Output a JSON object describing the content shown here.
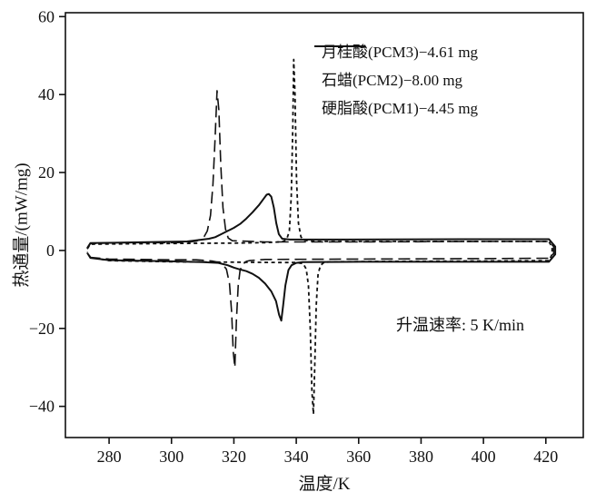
{
  "chart_data": {
    "type": "line",
    "title": "",
    "xlabel": "温度/K",
    "ylabel": "热通量/(mW/mg)",
    "xlim": [
      266,
      432
    ],
    "ylim": [
      -48,
      61
    ],
    "x_ticks": [
      280,
      300,
      320,
      340,
      360,
      380,
      400,
      420
    ],
    "y_ticks": [
      -40,
      -20,
      0,
      20,
      40,
      60
    ],
    "grid": false,
    "legend_position": "upper right",
    "line_color": "#111111",
    "annotation": {
      "text": "升温速率:  5 K/min",
      "x": 372,
      "y": -19
    },
    "series": [
      {
        "name": "月桂酸(PCM3)−4.61 mg",
        "style": "long-dash",
        "dash": "13 6",
        "width": 1.6,
        "melt_peak_K": 314.6,
        "melt_peak_mW_mg": 41,
        "cryst_peak_K": 320.3,
        "cryst_peak_mW_mg": -30,
        "points": [
          [
            273,
            0.5
          ],
          [
            274,
            1.8
          ],
          [
            285,
            2.0
          ],
          [
            300,
            2.0
          ],
          [
            305,
            2.1
          ],
          [
            308,
            2.4
          ],
          [
            309,
            2.8
          ],
          [
            310.5,
            3.6
          ],
          [
            311.5,
            5
          ],
          [
            312.5,
            9
          ],
          [
            313.3,
            17
          ],
          [
            314,
            29
          ],
          [
            314.6,
            41
          ],
          [
            315.2,
            36
          ],
          [
            315.8,
            22
          ],
          [
            316.5,
            11
          ],
          [
            317.3,
            5.5
          ],
          [
            318.2,
            3.2
          ],
          [
            319.5,
            2.5
          ],
          [
            330,
            2.2
          ],
          [
            360,
            2.2
          ],
          [
            400,
            2.3
          ],
          [
            421,
            2.3
          ],
          [
            422.5,
            1
          ],
          [
            422.5,
            -0.8
          ],
          [
            421,
            -2.0
          ],
          [
            400,
            -2.1
          ],
          [
            360,
            -2.2
          ],
          [
            330,
            -2.3
          ],
          [
            325,
            -2.6
          ],
          [
            324,
            -2.8
          ],
          [
            322.8,
            -3.6
          ],
          [
            322,
            -5
          ],
          [
            321.4,
            -9
          ],
          [
            320.8,
            -18
          ],
          [
            320.3,
            -30
          ],
          [
            319.8,
            -26
          ],
          [
            319.3,
            -16
          ],
          [
            318.6,
            -8.5
          ],
          [
            317.6,
            -4.8
          ],
          [
            316,
            -3.2
          ],
          [
            313,
            -2.7
          ],
          [
            308,
            -2.4
          ],
          [
            300,
            -2.4
          ],
          [
            280,
            -2.2
          ],
          [
            274,
            -1.8
          ],
          [
            273,
            -0.5
          ]
        ]
      },
      {
        "name": "石蜡(PCM2)−8.00 mg",
        "style": "solid",
        "dash": "",
        "width": 2,
        "melt_peak_K": 331,
        "melt_peak_mW_mg": 14.5,
        "cryst_peak_K": 335.2,
        "cryst_peak_mW_mg": -18,
        "points": [
          [
            273,
            0.6
          ],
          [
            274,
            1.9
          ],
          [
            290,
            2.1
          ],
          [
            305,
            2.3
          ],
          [
            310,
            2.8
          ],
          [
            312,
            3.0
          ],
          [
            314,
            3.4
          ],
          [
            316,
            4.2
          ],
          [
            318,
            5.0
          ],
          [
            320,
            5.8
          ],
          [
            322,
            6.8
          ],
          [
            324,
            8.2
          ],
          [
            326,
            9.8
          ],
          [
            328,
            11.6
          ],
          [
            329.5,
            13.2
          ],
          [
            330.5,
            14.3
          ],
          [
            331.2,
            14.5
          ],
          [
            332,
            13.8
          ],
          [
            332.8,
            11
          ],
          [
            333.6,
            7
          ],
          [
            334.4,
            4.2
          ],
          [
            335.5,
            3.0
          ],
          [
            338,
            2.8
          ],
          [
            350,
            2.8
          ],
          [
            400,
            2.9
          ],
          [
            421,
            2.9
          ],
          [
            423,
            1
          ],
          [
            423,
            -1
          ],
          [
            421,
            -2.9
          ],
          [
            400,
            -2.9
          ],
          [
            360,
            -2.9
          ],
          [
            342,
            -3.0
          ],
          [
            340,
            -3.2
          ],
          [
            338.5,
            -3.8
          ],
          [
            337.5,
            -5
          ],
          [
            336.5,
            -9
          ],
          [
            335.8,
            -14
          ],
          [
            335.2,
            -18
          ],
          [
            334.5,
            -16.5
          ],
          [
            333.5,
            -13
          ],
          [
            332,
            -10.5
          ],
          [
            330,
            -8.5
          ],
          [
            328,
            -7
          ],
          [
            326,
            -6
          ],
          [
            324,
            -5.3
          ],
          [
            322,
            -4.9
          ],
          [
            320,
            -4.4
          ],
          [
            318,
            -3.8
          ],
          [
            315,
            -3.2
          ],
          [
            310,
            -3.0
          ],
          [
            300,
            -2.8
          ],
          [
            280,
            -2.5
          ],
          [
            274,
            -1.9
          ],
          [
            273,
            -0.6
          ]
        ]
      },
      {
        "name": "硬脂酸(PCM1)−4.45 mg",
        "style": "short-dash",
        "dash": "4 3.5",
        "width": 1.8,
        "melt_peak_K": 339.2,
        "melt_peak_mW_mg": 49,
        "cryst_peak_K": 345.5,
        "cryst_peak_mW_mg": -42,
        "points": [
          [
            273,
            0.4
          ],
          [
            274,
            1.6
          ],
          [
            300,
            1.8
          ],
          [
            320,
            1.9
          ],
          [
            330,
            2.0
          ],
          [
            335,
            2.2
          ],
          [
            336,
            2.4
          ],
          [
            337,
            3.0
          ],
          [
            337.8,
            5
          ],
          [
            338.4,
            14
          ],
          [
            338.9,
            32
          ],
          [
            339.2,
            49
          ],
          [
            339.6,
            40
          ],
          [
            340.1,
            18
          ],
          [
            340.7,
            7
          ],
          [
            341.5,
            3.5
          ],
          [
            342.5,
            2.6
          ],
          [
            346,
            2.3
          ],
          [
            360,
            2.3
          ],
          [
            400,
            2.3
          ],
          [
            421,
            2.3
          ],
          [
            422,
            0.8
          ],
          [
            422,
            -1
          ],
          [
            421,
            -2.6
          ],
          [
            400,
            -2.7
          ],
          [
            370,
            -2.8
          ],
          [
            352,
            -2.9
          ],
          [
            349,
            -3.0
          ],
          [
            347.8,
            -3.8
          ],
          [
            347,
            -6
          ],
          [
            346.4,
            -14
          ],
          [
            345.9,
            -30
          ],
          [
            345.5,
            -42
          ],
          [
            345.0,
            -36
          ],
          [
            344.5,
            -20
          ],
          [
            343.9,
            -9
          ],
          [
            343.2,
            -4.8
          ],
          [
            342.2,
            -3.4
          ],
          [
            340,
            -3.1
          ],
          [
            335,
            -3.1
          ],
          [
            320,
            -3.0
          ],
          [
            300,
            -2.9
          ],
          [
            280,
            -2.6
          ],
          [
            274,
            -1.8
          ],
          [
            273,
            -0.4
          ]
        ]
      }
    ]
  }
}
